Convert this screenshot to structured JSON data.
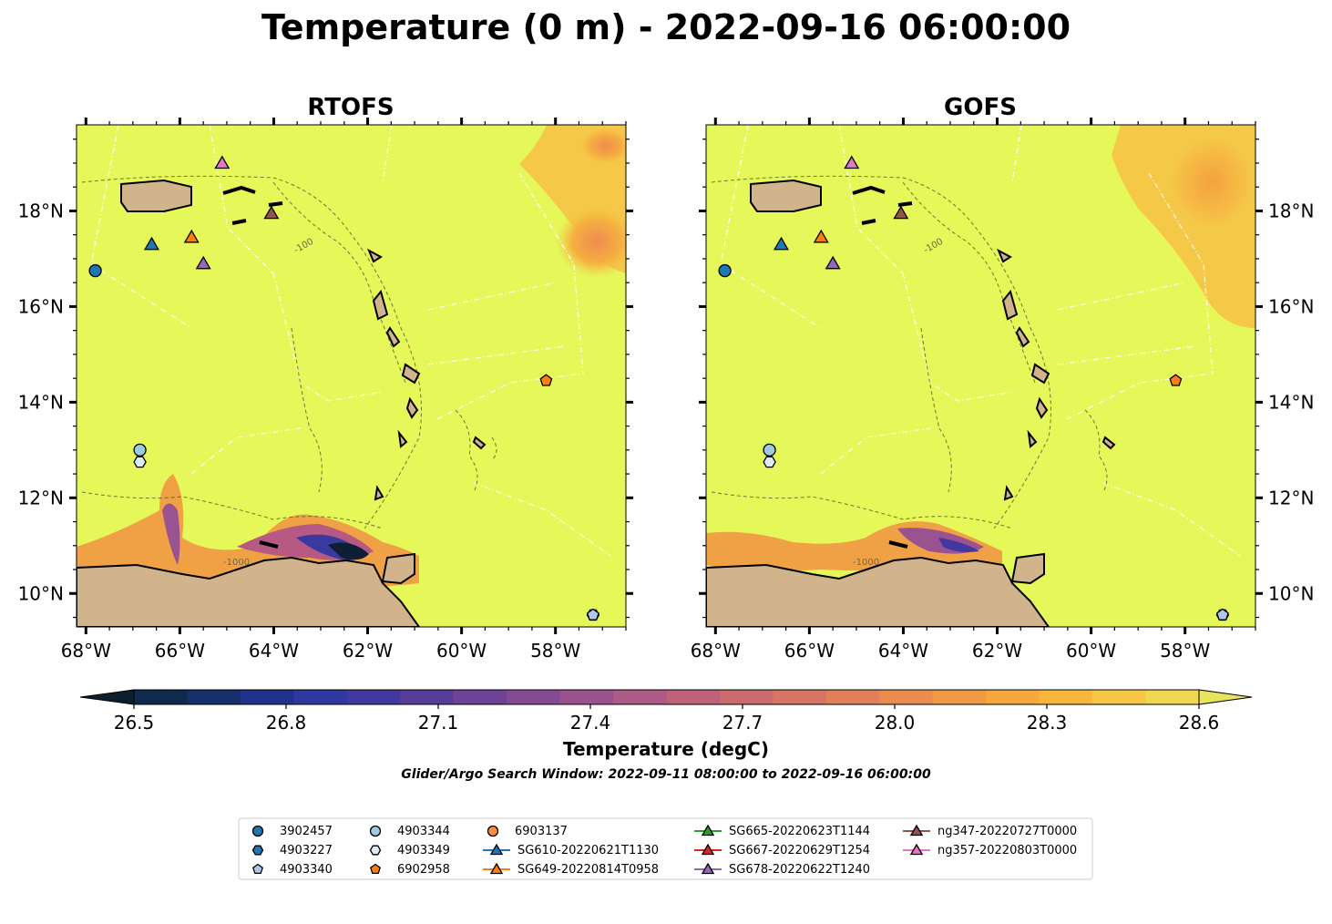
{
  "title": "Temperature (0 m) - 2022-09-16 06:00:00",
  "panels": [
    {
      "title": "RTOFS",
      "ytick_side": "left"
    },
    {
      "title": "GOFS",
      "ytick_side": "right"
    }
  ],
  "map": {
    "lon_range": [
      -68.2,
      -56.5
    ],
    "lat_range": [
      9.3,
      19.8
    ],
    "xticks": [
      {
        "value": -68,
        "label": "68°W"
      },
      {
        "value": -66,
        "label": "66°W"
      },
      {
        "value": -64,
        "label": "64°W"
      },
      {
        "value": -62,
        "label": "62°W"
      },
      {
        "value": -60,
        "label": "60°W"
      },
      {
        "value": -58,
        "label": "58°W"
      }
    ],
    "yticks": [
      {
        "value": 10,
        "label": "10°N"
      },
      {
        "value": 12,
        "label": "12°N"
      },
      {
        "value": 14,
        "label": "14°N"
      },
      {
        "value": 16,
        "label": "16°N"
      },
      {
        "value": 18,
        "label": "18°N"
      }
    ],
    "ocean_color": "#e6f75a",
    "land_color": "#d2b48c",
    "contour_labels": [
      "-100",
      "-1000"
    ]
  },
  "colorbar": {
    "label": "Temperature (degC)",
    "min": 26.4,
    "max": 28.7,
    "ticks": [
      {
        "value": 26.5,
        "label": "26.5"
      },
      {
        "value": 26.8,
        "label": "26.8"
      },
      {
        "value": 27.1,
        "label": "27.1"
      },
      {
        "value": 27.4,
        "label": "27.4"
      },
      {
        "value": 27.7,
        "label": "27.7"
      },
      {
        "value": 28.0,
        "label": "28.0"
      },
      {
        "value": 28.3,
        "label": "28.3"
      },
      {
        "value": 28.6,
        "label": "28.6"
      }
    ],
    "colors": [
      "#0b1f2e",
      "#0e2a4c",
      "#152f6b",
      "#20338c",
      "#2f37a0",
      "#43389f",
      "#573c99",
      "#6c4396",
      "#844b93",
      "#9a528e",
      "#ad5a85",
      "#be627b",
      "#cb6a6f",
      "#d87464",
      "#e2805a",
      "#eb8c4f",
      "#f19944",
      "#f6a83b",
      "#f8b73c",
      "#f6c745",
      "#f0d753",
      "#e8e55c"
    ]
  },
  "search_window": "Glider/Argo Search Window: 2022-09-11 08:00:00 to 2022-09-16 06:00:00",
  "markers": [
    {
      "id": "3902457",
      "lon": -67.8,
      "lat": 16.75,
      "shape": "circle",
      "color": "#1f77b4"
    },
    {
      "id": "4903227",
      "lon": -57.2,
      "lat": 9.55,
      "shape": "hexagon",
      "color": "#1f77b4"
    },
    {
      "id": "4903340",
      "lon": -57.2,
      "lat": 9.55,
      "shape": "pentagon",
      "color": "#aec7e8"
    },
    {
      "id": "4903344",
      "lon": -66.85,
      "lat": 13.0,
      "shape": "circle",
      "color": "#9ecae1"
    },
    {
      "id": "4903349",
      "lon": -66.85,
      "lat": 12.75,
      "shape": "hexagon",
      "color": "#deebf7"
    },
    {
      "id": "6902958",
      "lon": -58.2,
      "lat": 14.45,
      "shape": "pentagon",
      "color": "#ff7f0e"
    },
    {
      "id": "SG610-20220621T1130",
      "lon": -66.6,
      "lat": 17.3,
      "shape": "triangle",
      "color": "#1f77b4"
    },
    {
      "id": "SG649-20220814T0958",
      "lon": -65.75,
      "lat": 17.45,
      "shape": "triangle",
      "color": "#ff7f0e"
    },
    {
      "id": "SG678-20220622T1240",
      "lon": -65.5,
      "lat": 16.9,
      "shape": "triangle",
      "color": "#9467bd"
    },
    {
      "id": "ng347-20220727T0000",
      "lon": -64.05,
      "lat": 17.95,
      "shape": "triangle",
      "color": "#8c564b"
    },
    {
      "id": "ng357-20220803T0000",
      "lon": -65.1,
      "lat": 19.0,
      "shape": "triangle",
      "color": "#e377c2"
    }
  ],
  "legend": [
    {
      "label": "3902457",
      "shape": "circle",
      "color": "#1f77b4",
      "line": false
    },
    {
      "label": "4903227",
      "shape": "hexagon",
      "color": "#1f77b4",
      "line": false
    },
    {
      "label": "4903340",
      "shape": "pentagon",
      "color": "#aec7e8",
      "line": false
    },
    {
      "label": "4903344",
      "shape": "circle",
      "color": "#9ecae1",
      "line": false
    },
    {
      "label": "4903349",
      "shape": "hexagon",
      "color": "#deebf7",
      "line": false
    },
    {
      "label": "6902958",
      "shape": "pentagon",
      "color": "#ff7f0e",
      "line": false
    },
    {
      "label": "6903137",
      "shape": "circle",
      "color": "#fd8d3c",
      "line": false
    },
    {
      "label": "SG610-20220621T1130",
      "shape": "triangle",
      "color": "#1f77b4",
      "line": true
    },
    {
      "label": "SG649-20220814T0958",
      "shape": "triangle",
      "color": "#ff7f0e",
      "line": true
    },
    {
      "label": "SG665-20220623T1144",
      "shape": "triangle",
      "color": "#2ca02c",
      "line": true
    },
    {
      "label": "SG667-20220629T1254",
      "shape": "triangle",
      "color": "#d62728",
      "line": true
    },
    {
      "label": "SG678-20220622T1240",
      "shape": "triangle",
      "color": "#9467bd",
      "line": true
    },
    {
      "label": "ng347-20220727T0000",
      "shape": "triangle",
      "color": "#8c564b",
      "line": true
    },
    {
      "label": "ng357-20220803T0000",
      "shape": "triangle",
      "color": "#e377c2",
      "line": true
    }
  ]
}
